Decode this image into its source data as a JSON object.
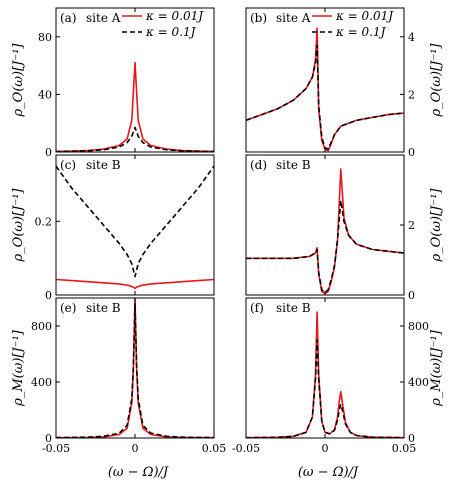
{
  "chart_data": [
    {
      "type": "line",
      "panel": "(a)",
      "site": "site A",
      "ylabel": "ρ_O(ω)[J⁻¹]",
      "xlim": [
        -0.05,
        0.05
      ],
      "ylim": [
        0,
        100
      ],
      "yticks": [
        "0",
        "40",
        "80"
      ],
      "legend": [
        "κ = 0.01J",
        "κ = 0.1J"
      ],
      "series": [
        {
          "name": "κ = 0.01J",
          "color": "#e8161c",
          "style": "solid",
          "x": [
            -0.05,
            -0.04,
            -0.03,
            -0.02,
            -0.01,
            -0.005,
            -0.002,
            0,
            0.002,
            0.005,
            0.01,
            0.02,
            0.03,
            0.04,
            0.05
          ],
          "y": [
            0.4,
            0.6,
            1,
            2,
            4.5,
            9,
            22,
            62,
            22,
            9,
            4.5,
            2,
            1,
            0.6,
            0.4
          ]
        },
        {
          "name": "κ = 0.1J",
          "color": "#000000",
          "style": "dashed",
          "x": [
            -0.05,
            -0.04,
            -0.03,
            -0.02,
            -0.01,
            -0.005,
            -0.002,
            0,
            0.002,
            0.005,
            0.01,
            0.02,
            0.03,
            0.04,
            0.05
          ],
          "y": [
            0.3,
            0.5,
            0.8,
            1.5,
            3.5,
            6.5,
            11,
            17,
            11,
            6.5,
            3.5,
            1.5,
            0.8,
            0.5,
            0.3
          ]
        }
      ]
    },
    {
      "type": "line",
      "panel": "(b)",
      "site": "site A",
      "ylabel": "ρ_O(ω)[J⁻¹]",
      "xlim": [
        -0.05,
        0.05
      ],
      "ylim": [
        0,
        5
      ],
      "yticks": [
        "0",
        "2",
        "4"
      ],
      "legend": [
        "κ = 0.01J",
        "κ = 0.1J"
      ],
      "series": [
        {
          "name": "κ = 0.01J",
          "color": "#e8161c",
          "style": "solid",
          "x": [
            -0.05,
            -0.04,
            -0.03,
            -0.02,
            -0.012,
            -0.008,
            -0.006,
            -0.005,
            -0.004,
            -0.002,
            0,
            0.002,
            0.004,
            0.006,
            0.01,
            0.02,
            0.03,
            0.04,
            0.05
          ],
          "y": [
            1.1,
            1.3,
            1.5,
            1.8,
            2.2,
            2.6,
            3.2,
            4.3,
            1.5,
            0.4,
            0.1,
            0.05,
            0.3,
            0.6,
            0.9,
            1.1,
            1.2,
            1.3,
            1.35
          ]
        },
        {
          "name": "κ = 0.1J",
          "color": "#000000",
          "style": "dashed",
          "x": [
            -0.05,
            -0.04,
            -0.03,
            -0.02,
            -0.012,
            -0.008,
            -0.006,
            -0.005,
            -0.004,
            -0.002,
            0,
            0.002,
            0.004,
            0.006,
            0.01,
            0.02,
            0.03,
            0.04,
            0.05
          ],
          "y": [
            1.1,
            1.3,
            1.5,
            1.8,
            2.2,
            2.6,
            3.1,
            3.7,
            1.6,
            0.5,
            0.15,
            0.1,
            0.35,
            0.6,
            0.9,
            1.1,
            1.2,
            1.3,
            1.35
          ]
        }
      ]
    },
    {
      "type": "line",
      "panel": "(c)",
      "site": "site B",
      "ylabel": "ρ_O(ω)[J⁻¹]",
      "xlim": [
        -0.05,
        0.05
      ],
      "ylim": [
        0,
        0.38
      ],
      "yticks": [
        "0",
        "0.2"
      ],
      "series": [
        {
          "name": "κ = 0.01J",
          "color": "#e8161c",
          "style": "solid",
          "x": [
            -0.05,
            -0.04,
            -0.03,
            -0.02,
            -0.01,
            -0.004,
            -0.001,
            0,
            0.001,
            0.004,
            0.01,
            0.02,
            0.03,
            0.04,
            0.05
          ],
          "y": [
            0.042,
            0.039,
            0.036,
            0.033,
            0.03,
            0.026,
            0.021,
            0.018,
            0.021,
            0.026,
            0.03,
            0.033,
            0.036,
            0.039,
            0.042
          ]
        },
        {
          "name": "κ = 0.1J",
          "color": "#000000",
          "style": "dashed",
          "x": [
            -0.05,
            -0.045,
            -0.04,
            -0.035,
            -0.03,
            -0.025,
            -0.02,
            -0.015,
            -0.01,
            -0.005,
            -0.002,
            0,
            0.002,
            0.005,
            0.01,
            0.015,
            0.02,
            0.025,
            0.03,
            0.035,
            0.04,
            0.045,
            0.05
          ],
          "y": [
            0.35,
            0.32,
            0.29,
            0.265,
            0.24,
            0.215,
            0.19,
            0.165,
            0.14,
            0.11,
            0.085,
            0.05,
            0.085,
            0.11,
            0.14,
            0.165,
            0.19,
            0.215,
            0.24,
            0.265,
            0.29,
            0.32,
            0.35
          ]
        }
      ]
    },
    {
      "type": "line",
      "panel": "(d)",
      "site": "site B",
      "ylabel": "ρ_O(ω)[J⁻¹]",
      "xlim": [
        -0.05,
        0.05
      ],
      "ylim": [
        0,
        4
      ],
      "yticks": [
        "0",
        "2"
      ],
      "series": [
        {
          "name": "κ = 0.01J",
          "color": "#e8161c",
          "style": "solid",
          "x": [
            -0.05,
            -0.04,
            -0.03,
            -0.02,
            -0.01,
            -0.006,
            -0.005,
            -0.004,
            -0.002,
            0,
            0.002,
            0.004,
            0.006,
            0.008,
            0.01,
            0.012,
            0.015,
            0.02,
            0.03,
            0.04,
            0.05
          ],
          "y": [
            1.05,
            1.05,
            1.05,
            1.05,
            1.1,
            1.2,
            1.35,
            0.6,
            0.1,
            0.05,
            0.1,
            0.4,
            0.8,
            1.6,
            3.6,
            2.2,
            1.7,
            1.45,
            1.3,
            1.25,
            1.2
          ]
        },
        {
          "name": "κ = 0.1J",
          "color": "#000000",
          "style": "dashed",
          "x": [
            -0.05,
            -0.04,
            -0.03,
            -0.02,
            -0.01,
            -0.006,
            -0.005,
            -0.004,
            -0.002,
            0,
            0.002,
            0.004,
            0.006,
            0.008,
            0.01,
            0.012,
            0.015,
            0.02,
            0.03,
            0.04,
            0.05
          ],
          "y": [
            1.05,
            1.05,
            1.05,
            1.05,
            1.1,
            1.2,
            1.3,
            0.65,
            0.15,
            0.08,
            0.15,
            0.45,
            0.85,
            1.6,
            2.7,
            2.1,
            1.7,
            1.45,
            1.3,
            1.25,
            1.2
          ]
        }
      ]
    },
    {
      "type": "line",
      "panel": "(e)",
      "site": "site B",
      "ylabel": "ρ_M(ω)[J⁻¹]",
      "xlim": [
        -0.05,
        0.05
      ],
      "ylim": [
        0,
        1000
      ],
      "yticks": [
        "0",
        "400",
        "800"
      ],
      "series": [
        {
          "name": "κ = 0.01J",
          "color": "#e8161c",
          "style": "solid",
          "x": [
            -0.05,
            -0.03,
            -0.02,
            -0.01,
            -0.005,
            -0.002,
            -0.001,
            0,
            0.001,
            0.002,
            0.005,
            0.01,
            0.02,
            0.03,
            0.05
          ],
          "y": [
            2,
            4,
            8,
            25,
            70,
            250,
            500,
            1000,
            500,
            250,
            70,
            25,
            8,
            4,
            2
          ]
        },
        {
          "name": "κ = 0.1J",
          "color": "#000000",
          "style": "dashed",
          "x": [
            -0.05,
            -0.03,
            -0.02,
            -0.01,
            -0.005,
            -0.002,
            -0.001,
            0,
            0.001,
            0.002,
            0.005,
            0.01,
            0.02,
            0.03,
            0.05
          ],
          "y": [
            3,
            6,
            12,
            35,
            90,
            280,
            520,
            960,
            520,
            280,
            90,
            35,
            12,
            6,
            3
          ]
        }
      ]
    },
    {
      "type": "line",
      "panel": "(f)",
      "site": "site B",
      "ylabel": "ρ_M(ω)[J⁻¹]",
      "xlim": [
        -0.05,
        0.05
      ],
      "ylim": [
        0,
        1000
      ],
      "yticks": [
        "0",
        "400",
        "800"
      ],
      "series": [
        {
          "name": "κ = 0.01J",
          "color": "#e8161c",
          "style": "solid",
          "x": [
            -0.05,
            -0.03,
            -0.02,
            -0.012,
            -0.008,
            -0.006,
            -0.005,
            -0.004,
            -0.002,
            0,
            0.003,
            0.006,
            0.008,
            0.009,
            0.01,
            0.011,
            0.013,
            0.016,
            0.02,
            0.03,
            0.05
          ],
          "y": [
            2,
            5,
            12,
            40,
            150,
            450,
            900,
            450,
            120,
            40,
            30,
            60,
            150,
            260,
            330,
            250,
            110,
            40,
            18,
            6,
            2
          ]
        },
        {
          "name": "κ = 0.1J",
          "color": "#000000",
          "style": "dashed",
          "x": [
            -0.05,
            -0.03,
            -0.02,
            -0.012,
            -0.008,
            -0.006,
            -0.005,
            -0.004,
            -0.002,
            0,
            0.003,
            0.006,
            0.008,
            0.009,
            0.01,
            0.011,
            0.013,
            0.016,
            0.02,
            0.03,
            0.05
          ],
          "y": [
            2,
            5,
            12,
            40,
            150,
            420,
            700,
            420,
            120,
            40,
            30,
            55,
            130,
            200,
            240,
            200,
            100,
            40,
            18,
            6,
            2
          ]
        }
      ]
    }
  ],
  "xticks": [
    "-0.05",
    "0",
    "0.05"
  ],
  "xlabel": "(ω − Ω)/J"
}
